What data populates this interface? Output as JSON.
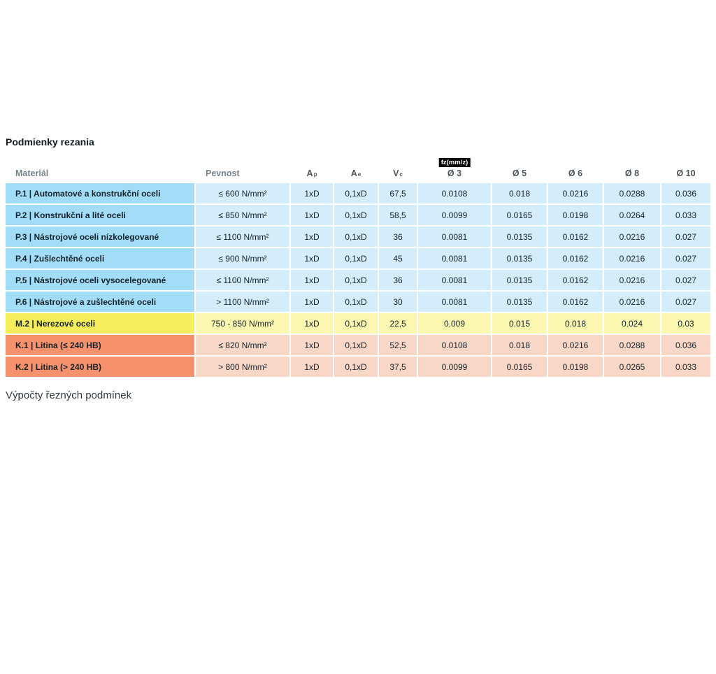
{
  "page": {
    "title": "Podmienky rezania",
    "section_heading": "Výpočty řezných podmínek"
  },
  "table": {
    "fz_badge": "fz(mm/z)",
    "columns": [
      {
        "label": "Materiál"
      },
      {
        "label": "Pevnost"
      },
      {
        "label": "A",
        "sub": "p"
      },
      {
        "label": "A",
        "sub": "e"
      },
      {
        "label": "V",
        "sub": "c"
      },
      {
        "label": "Ø 3"
      },
      {
        "label": "Ø 5"
      },
      {
        "label": "Ø 6"
      },
      {
        "label": "Ø 8"
      },
      {
        "label": "Ø 10"
      }
    ],
    "rows": [
      {
        "group": "p",
        "cells": [
          "P.1 | Automatové a konstrukční oceli",
          "≤ 600 N/mm²",
          "1xD",
          "0,1xD",
          "67,5",
          "0.0108",
          "0.018",
          "0.0216",
          "0.0288",
          "0.036"
        ]
      },
      {
        "group": "p",
        "cells": [
          "P.2 | Konstrukční a lité oceli",
          "≤ 850 N/mm²",
          "1xD",
          "0,1xD",
          "58,5",
          "0.0099",
          "0.0165",
          "0.0198",
          "0.0264",
          "0.033"
        ]
      },
      {
        "group": "p",
        "cells": [
          "P.3 | Nástrojové oceli nízkolegované",
          "≤ 1100 N/mm²",
          "1xD",
          "0,1xD",
          "36",
          "0.0081",
          "0.0135",
          "0.0162",
          "0.0216",
          "0.027"
        ]
      },
      {
        "group": "p",
        "cells": [
          "P.4 | Zušlechtěné oceli",
          "≤ 900 N/mm²",
          "1xD",
          "0,1xD",
          "45",
          "0.0081",
          "0.0135",
          "0.0162",
          "0.0216",
          "0.027"
        ]
      },
      {
        "group": "p",
        "cells": [
          "P.5 | Nástrojové oceli vysocelegované",
          "≤ 1100 N/mm²",
          "1xD",
          "0,1xD",
          "36",
          "0.0081",
          "0.0135",
          "0.0162",
          "0.0216",
          "0.027"
        ]
      },
      {
        "group": "p",
        "cells": [
          "P.6 | Nástrojové a zušlechtěné oceli",
          "> 1100 N/mm²",
          "1xD",
          "0,1xD",
          "30",
          "0.0081",
          "0.0135",
          "0.0162",
          "0.0216",
          "0.027"
        ]
      },
      {
        "group": "m",
        "cells": [
          "M.2 | Nerezové oceli",
          "750 - 850 N/mm²",
          "1xD",
          "0,1xD",
          "22,5",
          "0.009",
          "0.015",
          "0.018",
          "0.024",
          "0.03"
        ]
      },
      {
        "group": "k",
        "cells": [
          "K.1 | Litina (≤ 240 HB)",
          "≤ 820 N/mm²",
          "1xD",
          "0,1xD",
          "52,5",
          "0.0108",
          "0.018",
          "0.0216",
          "0.0288",
          "0.036"
        ]
      },
      {
        "group": "k",
        "cells": [
          "K.2 | Litina (> 240 HB)",
          "> 800 N/mm²",
          "1xD",
          "0,1xD",
          "37,5",
          "0.0099",
          "0.0165",
          "0.0198",
          "0.0265",
          "0.033"
        ]
      }
    ]
  },
  "colors": {
    "group_p_material": "#a2dcf7",
    "group_p_cell": "#d3edfa",
    "group_m_material": "#f5ed5c",
    "group_m_cell": "#fbf7b0",
    "group_k_material": "#f5916c",
    "group_k_cell": "#f9d7c7",
    "badge_bg": "#000000",
    "badge_text": "#ffffff"
  }
}
